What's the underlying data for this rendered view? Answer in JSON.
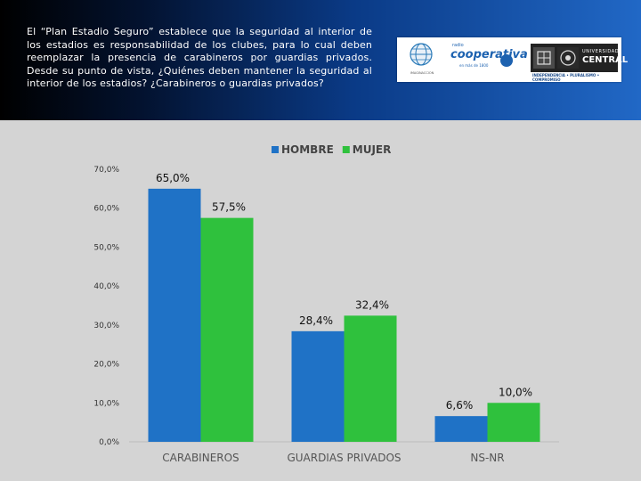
{
  "question": "El “Plan Estadio Seguro” establece que la seguridad al interior de los estadios es responsabilidad de los clubes, para lo cual deben reemplazar la presencia de carabineros por guardias privados. Desde su punto de vista, ¿Quiénes deben mantener la seguridad al interior de los estadios? ¿Carabineros o guardias privados?",
  "logos": {
    "cooperativa_small": "radio",
    "cooperativa": "cooperativa",
    "cooperativa_sub": "en más de 1800",
    "uc_line1": "UNIVERSIDAD",
    "uc_line2": "CENTRAL",
    "motto": "INDEPENDENCIA • PLURALISMO • COMPROMISO",
    "globe_caption": "IMAGINACCION"
  },
  "colors": {
    "HOMBRE": "#1f72c6",
    "MUJER": "#2fc13d"
  },
  "chart_data": {
    "type": "bar",
    "categories": [
      "CARABINEROS",
      "GUARDIAS PRIVADOS",
      "NS-NR"
    ],
    "series": [
      {
        "name": "HOMBRE",
        "values": [
          65.0,
          28.4,
          6.6
        ],
        "labels": [
          "65,0%",
          "28,4%",
          "6,6%"
        ]
      },
      {
        "name": "MUJER",
        "values": [
          57.5,
          32.4,
          10.0
        ],
        "labels": [
          "57,5%",
          "32,4%",
          "10,0%"
        ]
      }
    ],
    "yticks": [
      "0,0%",
      "10,0%",
      "20,0%",
      "30,0%",
      "40,0%",
      "50,0%",
      "60,0%",
      "70,0%"
    ],
    "ylim": [
      0,
      70
    ],
    "legend": "top-center",
    "grid": false
  }
}
